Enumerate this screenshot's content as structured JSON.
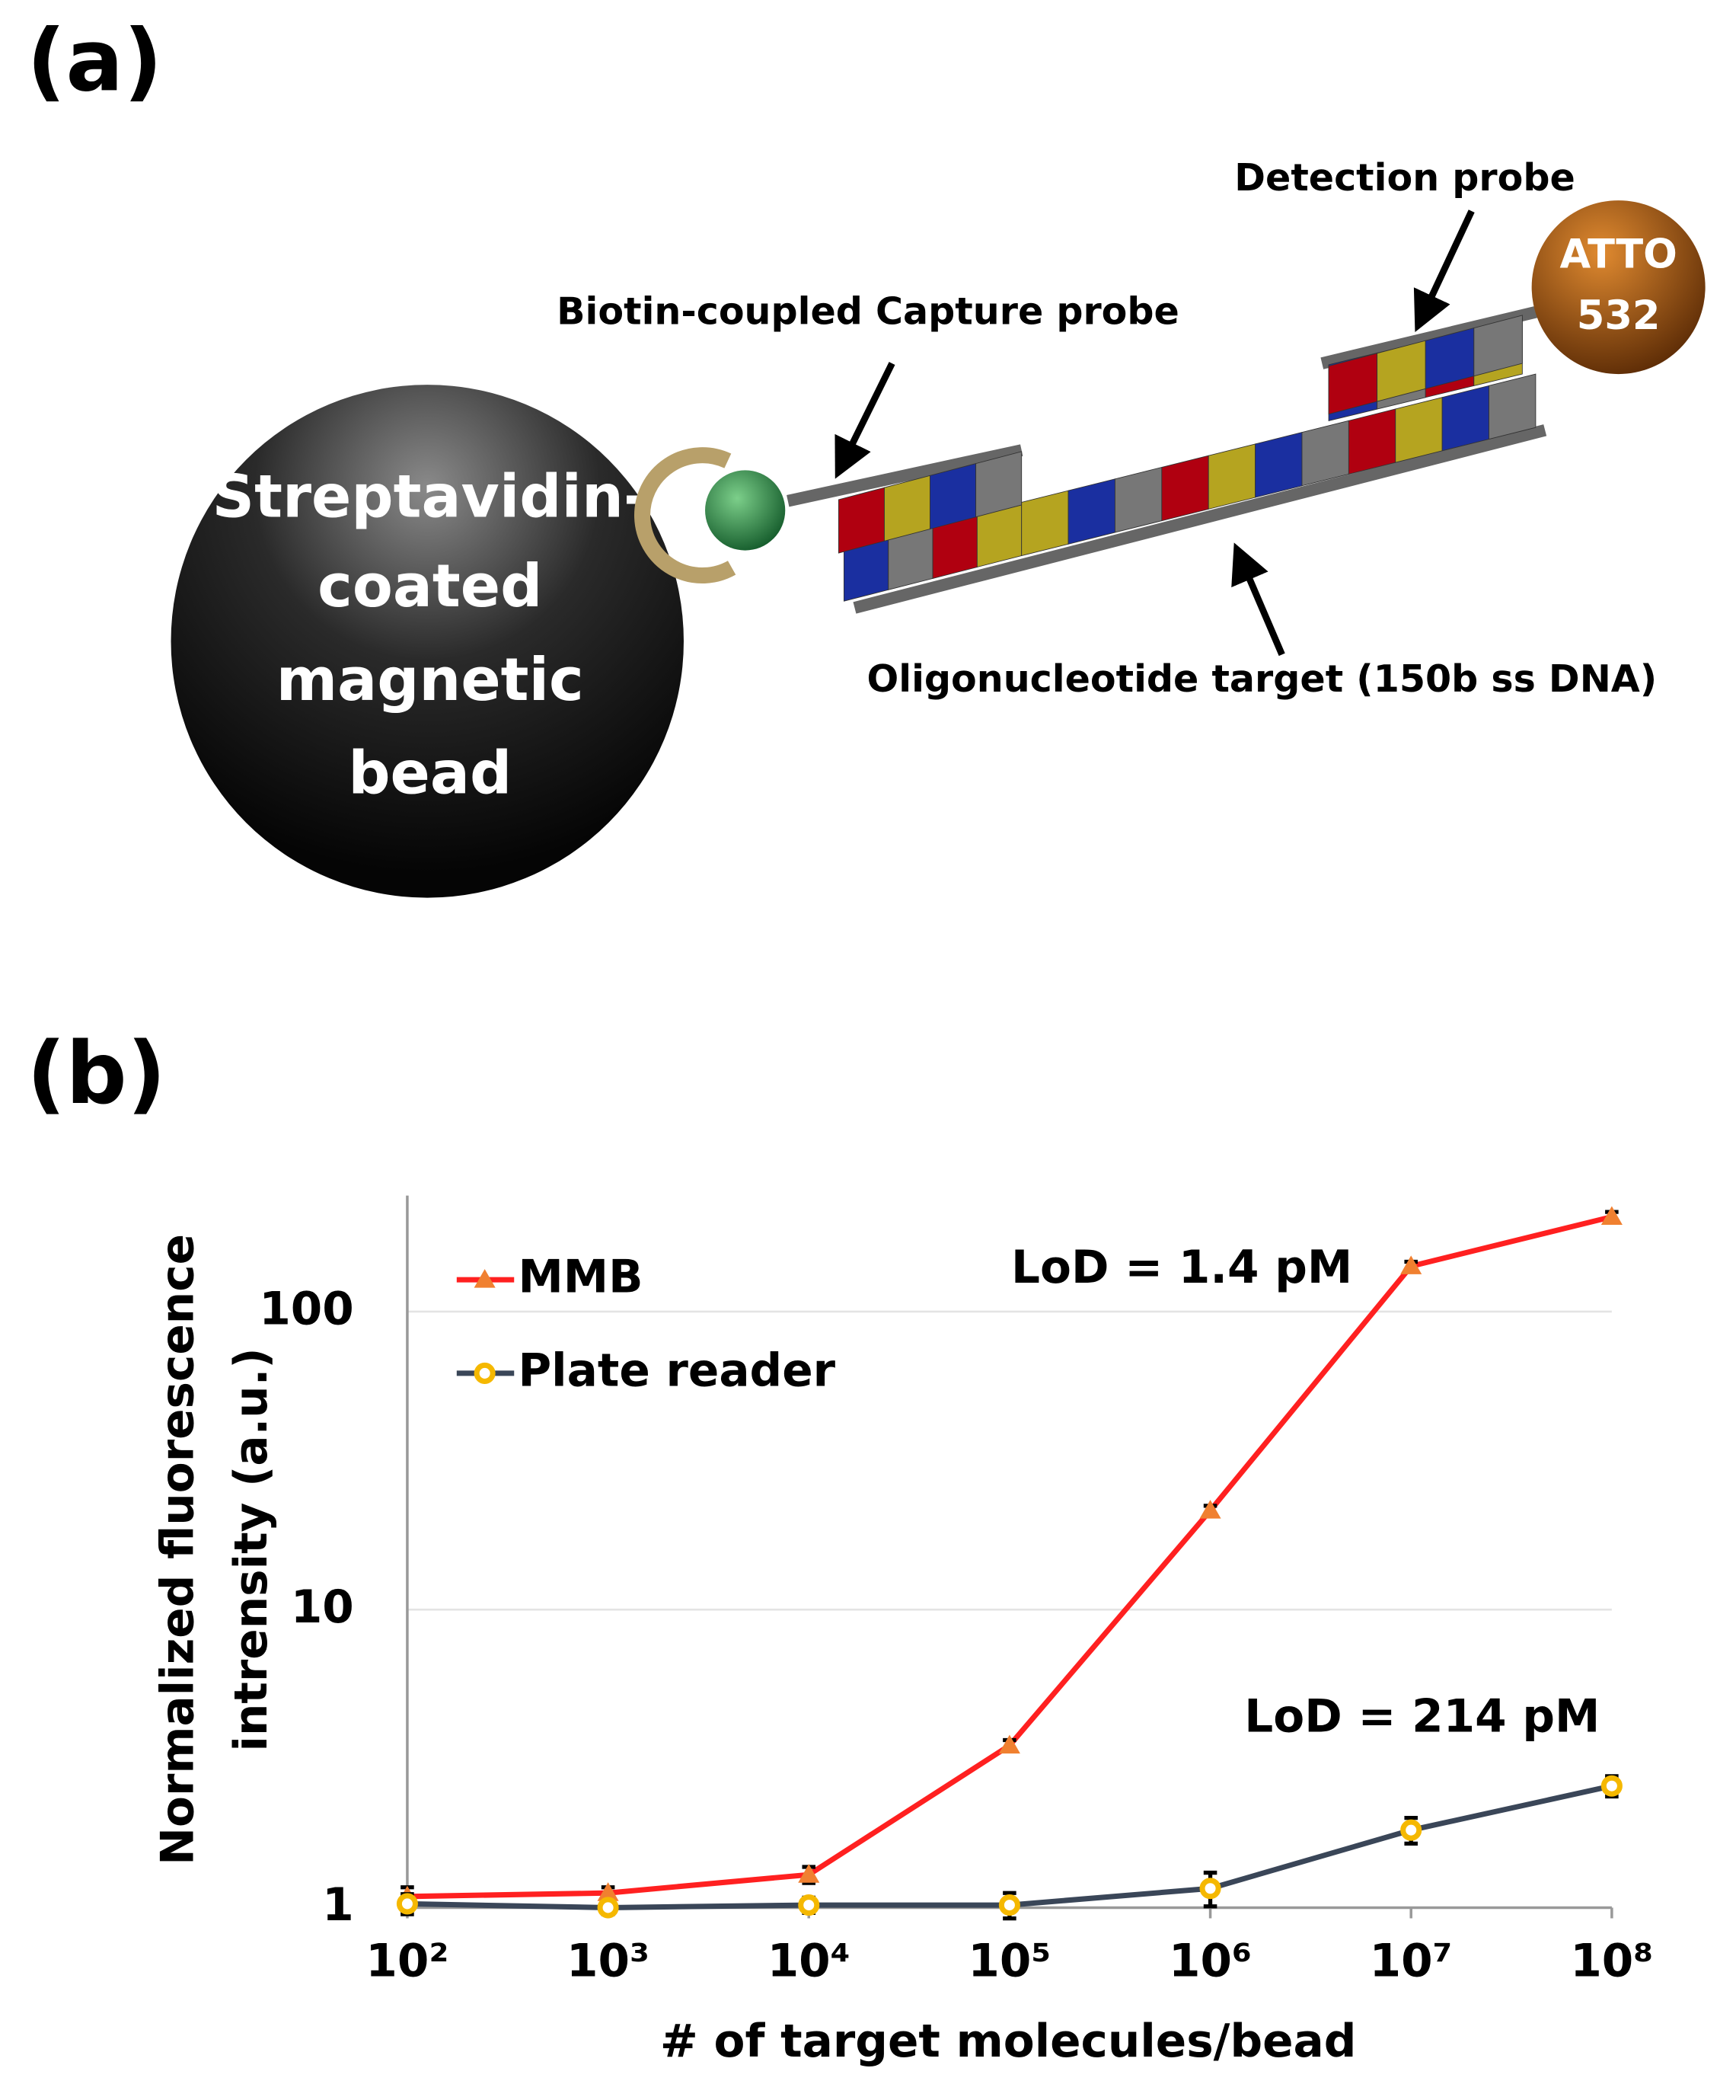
{
  "panel_a": {
    "label": "(a)",
    "bead": [
      "Streptavidin-",
      "coated",
      "magnetic",
      "bead"
    ],
    "capture_probe": "Biotin-coupled Capture probe",
    "detection_probe": "Detection probe",
    "target": "Oligonucleotide target (150b ss DNA)",
    "dye": [
      "ATTO",
      "532"
    ]
  },
  "chart_data": {
    "type": "line",
    "panel_label": "(b)",
    "xlabel": "# of target molecules/bead",
    "ylabel": [
      "Normalized fluorescence",
      "intrensity (a.u.)"
    ],
    "x": [
      100,
      1000,
      10000,
      100000,
      1000000,
      10000000,
      100000000
    ],
    "xscale": "log",
    "yscale": "log",
    "xlim": [
      100,
      100000000
    ],
    "ylim": [
      1,
      245
    ],
    "xticks": [
      {
        "value": 100,
        "label": "10²"
      },
      {
        "value": 1000,
        "label": "10³"
      },
      {
        "value": 10000,
        "label": "10⁴"
      },
      {
        "value": 100000,
        "label": "10⁵"
      },
      {
        "value": 1000000,
        "label": "10⁶"
      },
      {
        "value": 10000000,
        "label": "10⁷"
      },
      {
        "value": 100000000,
        "label": "10⁸"
      }
    ],
    "yticks": [
      1,
      10,
      100
    ],
    "grid": true,
    "legend": "upper left",
    "series": [
      {
        "name": "MMB",
        "color": "#ff2020",
        "marker_color": "#f08030",
        "marker": "triangle",
        "values": [
          1.09,
          1.12,
          1.29,
          3.5,
          21.5,
          142,
          208
        ],
        "errors": [
          0.08,
          0.05,
          0.08,
          0.15,
          0.8,
          5,
          8
        ]
      },
      {
        "name": "Plate reader",
        "color": "#3a4658",
        "marker_color": "#f5b800",
        "marker": "circle",
        "values": [
          1.03,
          1.0,
          1.02,
          1.02,
          1.16,
          1.82,
          2.56
        ],
        "errors": [
          0.08,
          0.05,
          0.06,
          0.1,
          0.15,
          0.18,
          0.2
        ]
      }
    ],
    "annotations": [
      {
        "text": "LoD = 1.4 pM",
        "series": 0
      },
      {
        "text": "LoD = 214 pM",
        "series": 1
      }
    ]
  }
}
